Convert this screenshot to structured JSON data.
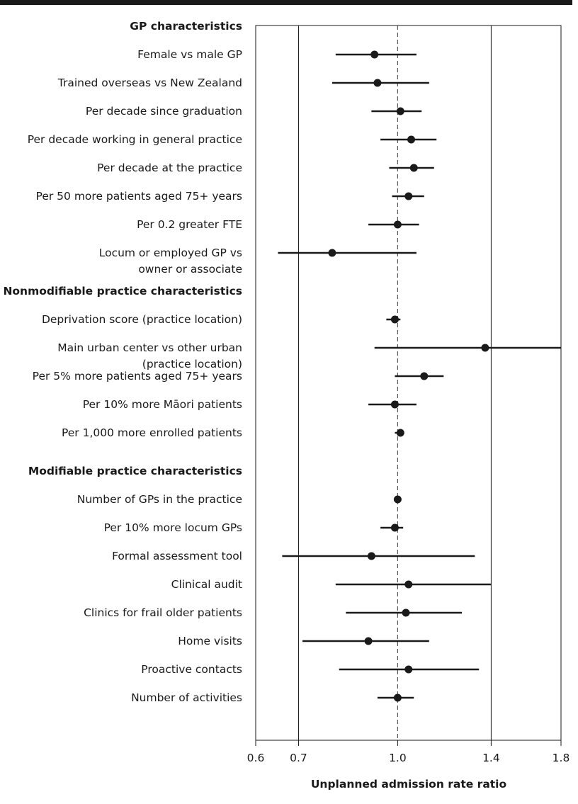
{
  "chart_data": {
    "type": "forest",
    "xlabel": "Unplanned admission rate ratio",
    "xscale": "log",
    "xlim": [
      0.6,
      1.8
    ],
    "xticks": [
      0.6,
      0.7,
      1.0,
      1.4,
      1.8
    ],
    "xtick_labels": [
      "0.6",
      "0.7",
      "1.0",
      "1.4",
      "1.8"
    ],
    "reference_line": 1.0,
    "sections": [
      {
        "title": "GP characteristics",
        "rows": [
          {
            "label": [
              "Female vs male GP"
            ],
            "estimate": 0.92,
            "lower": 0.8,
            "upper": 1.07
          },
          {
            "label": [
              "Trained overseas vs New Zealand"
            ],
            "estimate": 0.93,
            "lower": 0.79,
            "upper": 1.12
          },
          {
            "label": [
              "Per decade since graduation"
            ],
            "estimate": 1.01,
            "lower": 0.91,
            "upper": 1.09
          },
          {
            "label": [
              "Per decade working in general practice"
            ],
            "estimate": 1.05,
            "lower": 0.94,
            "upper": 1.15
          },
          {
            "label": [
              "Per decade at the practice"
            ],
            "estimate": 1.06,
            "lower": 0.97,
            "upper": 1.14
          },
          {
            "label": [
              "Per 50 more patients aged 75+ years"
            ],
            "estimate": 1.04,
            "lower": 0.98,
            "upper": 1.1
          },
          {
            "label": [
              "Per 0.2 greater FTE"
            ],
            "estimate": 1.0,
            "lower": 0.9,
            "upper": 1.08
          },
          {
            "label": [
              "Locum or employed GP vs",
              "owner or associate"
            ],
            "estimate": 0.79,
            "lower": 0.65,
            "upper": 1.07
          }
        ]
      },
      {
        "title": "Nonmodifiable practice characteristics",
        "rows": [
          {
            "label": [
              "Deprivation score (practice location)"
            ],
            "estimate": 0.99,
            "lower": 0.96,
            "upper": 1.01
          },
          {
            "label": [
              "Main urban center vs other urban",
              "(practice location)"
            ],
            "estimate": 1.37,
            "lower": 0.92,
            "upper": 1.8
          },
          {
            "label": [
              "Per 5% more patients aged 75+ years"
            ],
            "estimate": 1.1,
            "lower": 0.99,
            "upper": 1.18
          },
          {
            "label": [
              "Per 10% more Māori patients"
            ],
            "estimate": 0.99,
            "lower": 0.9,
            "upper": 1.07
          },
          {
            "label": [
              "Per 1,000 more enrolled patients"
            ],
            "estimate": 1.01,
            "lower": 0.99,
            "upper": 1.02
          }
        ]
      },
      {
        "title": "Modifiable practice characteristics",
        "rows": [
          {
            "label": [
              "Number of GPs in the practice"
            ],
            "estimate": 1.0,
            "lower": 0.99,
            "upper": 1.01
          },
          {
            "label": [
              "Per 10% more locum GPs"
            ],
            "estimate": 0.99,
            "lower": 0.94,
            "upper": 1.02
          },
          {
            "label": [
              "Formal assessment tool"
            ],
            "estimate": 0.91,
            "lower": 0.66,
            "upper": 1.32
          },
          {
            "label": [
              "Clinical audit"
            ],
            "estimate": 1.04,
            "lower": 0.8,
            "upper": 1.4
          },
          {
            "label": [
              "Clinics for frail older patients"
            ],
            "estimate": 1.03,
            "lower": 0.83,
            "upper": 1.26
          },
          {
            "label": [
              "Home visits"
            ],
            "estimate": 0.9,
            "lower": 0.71,
            "upper": 1.12
          },
          {
            "label": [
              "Proactive contacts"
            ],
            "estimate": 1.04,
            "lower": 0.81,
            "upper": 1.34
          },
          {
            "label": [
              "Number of activities"
            ],
            "estimate": 1.0,
            "lower": 0.93,
            "upper": 1.06
          }
        ]
      }
    ]
  }
}
